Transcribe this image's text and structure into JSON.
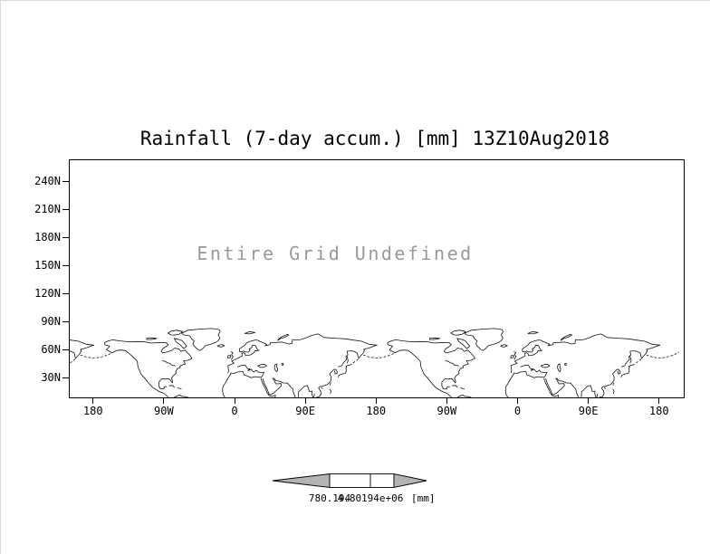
{
  "title": "Rainfall (7-day accum.) [mm] 13Z10Aug2018",
  "overlay_message": "Entire Grid Undefined",
  "yaxis": {
    "labels": [
      "240N",
      "210N",
      "180N",
      "150N",
      "120N",
      "90N",
      "60N",
      "30N"
    ]
  },
  "xaxis": {
    "labels": [
      "180",
      "90W",
      "0",
      "90E",
      "180",
      "90W",
      "0",
      "90E",
      "180"
    ]
  },
  "colorbar": {
    "tick_labels": [
      "780.194",
      "4.80194e+06"
    ],
    "units": "[mm]",
    "arrow_color": "#b4b4b4"
  },
  "colors": {
    "frame": "#000000",
    "message_gray": "#999999",
    "coastline": "#141414"
  },
  "chart_data": {
    "type": "heatmap",
    "title": "Rainfall (7-day accum.) [mm] 13Z10Aug2018",
    "xlabel": "",
    "ylabel": "",
    "x_tick_labels": [
      "180",
      "90W",
      "0",
      "90E",
      "180",
      "90W",
      "0",
      "90E",
      "180"
    ],
    "y_tick_labels": [
      "240N",
      "210N",
      "180N",
      "150N",
      "120N",
      "90N",
      "60N",
      "30N"
    ],
    "series": [],
    "values": null,
    "annotations": [
      "Entire Grid Undefined"
    ],
    "colorbar": {
      "tick_labels": [
        "780.194",
        "4.80194e+06"
      ],
      "units": "[mm]"
    },
    "legend_position": "bottom-center",
    "grid": false,
    "notes": "No field values plotted (entire grid undefined); world coastline basemap shown with longitude cycle repeated twice."
  }
}
